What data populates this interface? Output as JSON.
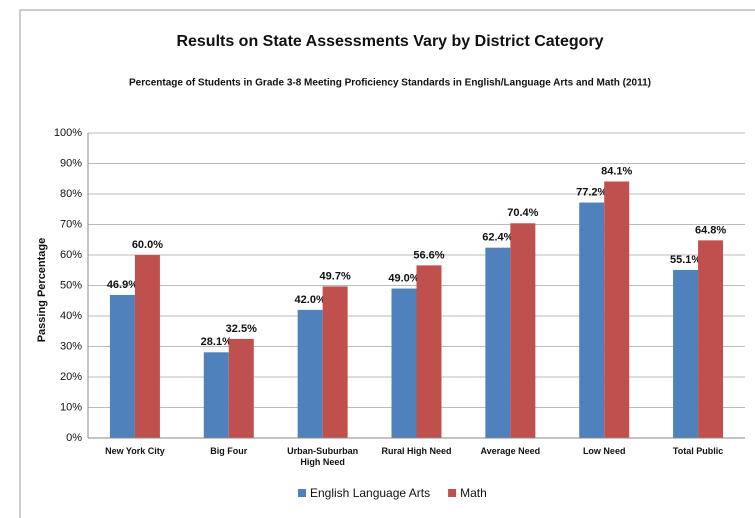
{
  "chart_data": {
    "type": "bar",
    "title": "Results on State Assessments Vary by District Category",
    "subtitle": "Percentage of Students in Grade 3-8 Meeting Proficiency Standards in English/Language Arts and Math (2011)",
    "y_label": "Passing Percentage",
    "categories": [
      "New York City",
      "Big Four",
      "Urban-Suburban High Need",
      "Rural High Need",
      "Average Need",
      "Low Need",
      "Total Public"
    ],
    "series": [
      {
        "name": "English Language Arts",
        "color": "#4f81bd",
        "values": [
          46.9,
          28.1,
          42.0,
          49.0,
          62.4,
          77.2,
          55.1
        ],
        "value_labels": [
          "46.9%",
          "28.1%",
          "42.0%",
          "49.0%",
          "62.4%",
          "77.2%",
          "55.1%"
        ]
      },
      {
        "name": "Math",
        "color": "#c0504d",
        "values": [
          60.0,
          32.5,
          49.7,
          56.6,
          70.4,
          84.1,
          64.8
        ],
        "value_labels": [
          "60.0%",
          "32.5%",
          "49.7%",
          "56.6%",
          "70.4%",
          "84.1%",
          "64.8%"
        ]
      }
    ],
    "ylim": [
      0,
      100
    ],
    "yticks": [
      {
        "value": 0,
        "label": "0%"
      },
      {
        "value": 10,
        "label": "10%"
      },
      {
        "value": 20,
        "label": "20%"
      },
      {
        "value": 30,
        "label": "30%"
      },
      {
        "value": 40,
        "label": "40%"
      },
      {
        "value": 50,
        "label": "50%"
      },
      {
        "value": 60,
        "label": "60%"
      },
      {
        "value": 70,
        "label": "70%"
      },
      {
        "value": 80,
        "label": "80%"
      },
      {
        "value": 90,
        "label": "90%"
      },
      {
        "value": 100,
        "label": "100%"
      }
    ],
    "grid": true,
    "legend": "bottom"
  }
}
